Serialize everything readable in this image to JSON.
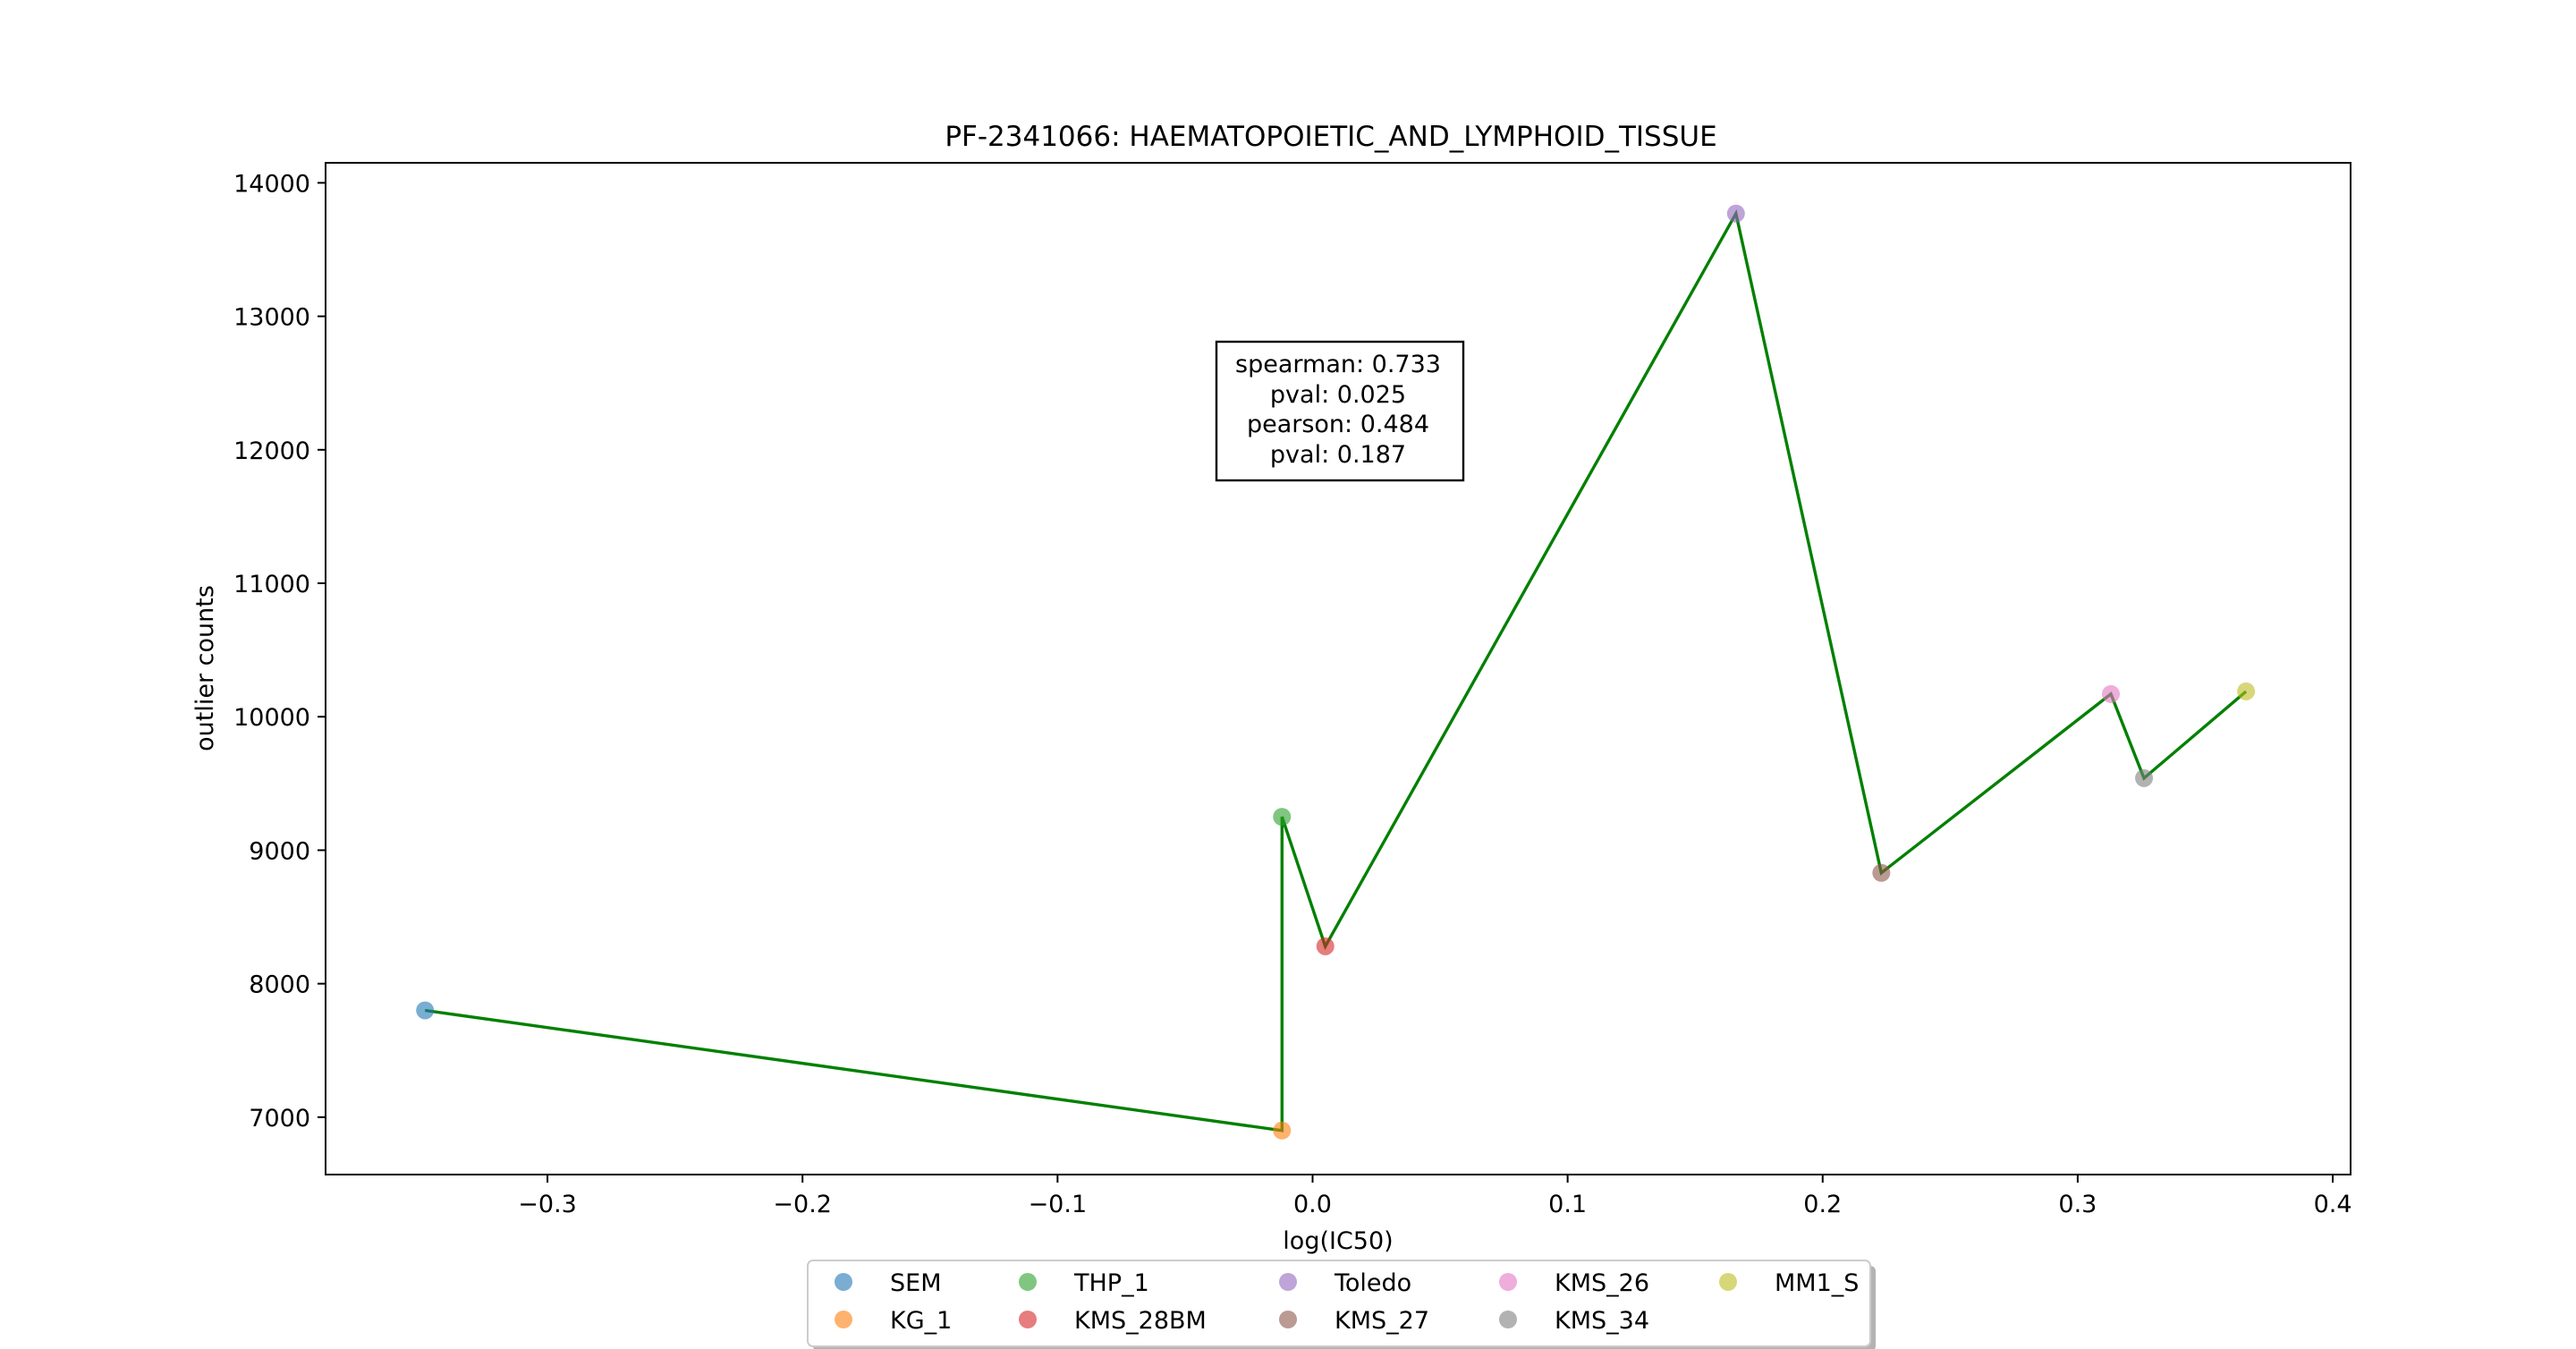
{
  "chart_data": {
    "type": "scatter",
    "title": "PF-2341066: HAEMATOPOIETIC_AND_LYMPHOID_TISSUE",
    "xlabel": "log(IC50)",
    "ylabel": "outlier counts",
    "xlim": [
      -0.387,
      0.407
    ],
    "ylim": [
      6570,
      14150
    ],
    "xticks": [
      -0.3,
      -0.2,
      -0.1,
      0.0,
      0.1,
      0.2,
      0.3,
      0.4
    ],
    "xtick_labels": [
      "−0.3",
      "−0.2",
      "−0.1",
      "0.0",
      "0.1",
      "0.2",
      "0.3",
      "0.4"
    ],
    "yticks": [
      7000,
      8000,
      9000,
      10000,
      11000,
      12000,
      13000,
      14000
    ],
    "ytick_labels": [
      "7000",
      "8000",
      "9000",
      "10000",
      "11000",
      "12000",
      "13000",
      "14000"
    ],
    "grid": false,
    "line_color": "#008000",
    "series": [
      {
        "name": "SEM",
        "x": -0.348,
        "y": 7800,
        "color": "#1f77b4"
      },
      {
        "name": "KG_1",
        "x": -0.012,
        "y": 6900,
        "color": "#ff7f0e"
      },
      {
        "name": "THP_1",
        "x": -0.012,
        "y": 9250,
        "color": "#2ca02c"
      },
      {
        "name": "KMS_28BM",
        "x": 0.005,
        "y": 8280,
        "color": "#d62728"
      },
      {
        "name": "Toledo",
        "x": 0.166,
        "y": 13770,
        "color": "#9467bd"
      },
      {
        "name": "KMS_27",
        "x": 0.223,
        "y": 8830,
        "color": "#8c564b"
      },
      {
        "name": "KMS_26",
        "x": 0.313,
        "y": 10170,
        "color": "#e377c2"
      },
      {
        "name": "KMS_34",
        "x": 0.326,
        "y": 9540,
        "color": "#7f7f7f"
      },
      {
        "name": "MM1_S",
        "x": 0.366,
        "y": 10190,
        "color": "#bcbd22"
      }
    ],
    "line_order": [
      "SEM",
      "KG_1",
      "THP_1",
      "KMS_28BM",
      "Toledo",
      "KMS_27",
      "KMS_26",
      "KMS_34",
      "MM1_S"
    ],
    "annotation": [
      "spearman: 0.733",
      "pval: 0.025",
      "pearson: 0.484",
      "pval: 0.187"
    ],
    "legend": {
      "placement": "below-plot",
      "columns": 5
    }
  }
}
